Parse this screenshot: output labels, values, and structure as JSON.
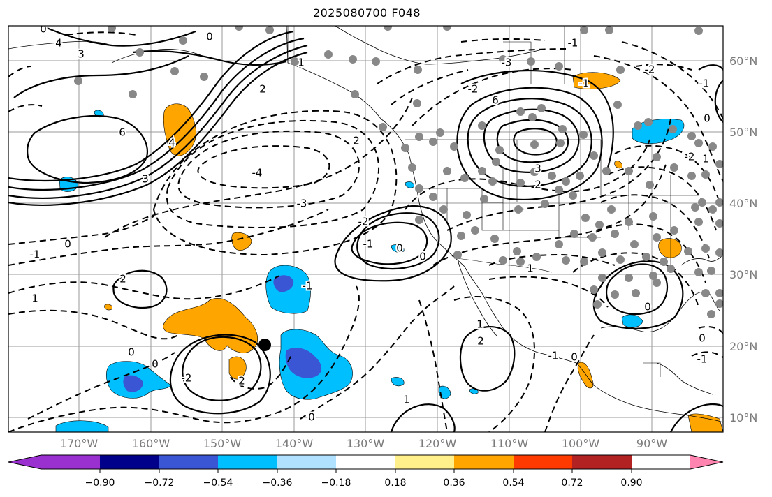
{
  "title": "2025080700 F048",
  "latitude_labels": [
    "60°N",
    "50°N",
    "40°N",
    "30°N",
    "20°N",
    "10°N"
  ],
  "longitude_labels": [
    "170°W",
    "160°W",
    "150°W",
    "140°W",
    "130°W",
    "120°W",
    "110°W",
    "100°W",
    "90°W"
  ],
  "colorbar": {
    "ticks": [
      "−0.90",
      "−0.72",
      "−0.54",
      "−0.36",
      "−0.18",
      "0.18",
      "0.36",
      "0.54",
      "0.72",
      "0.90"
    ],
    "colors": [
      "#9b30d0",
      "#00008b",
      "#3a56d4",
      "#00bfff",
      "#b0e2ff",
      "#ffffff",
      "#fff08c",
      "#ffa500",
      "#ff3a00",
      "#b22222",
      "#ff85b0"
    ]
  },
  "shading_colors": {
    "neg_light": "#00bfff",
    "neg_mid": "#3a56d4",
    "pos": "#ffa500"
  },
  "contour_labels": [
    "0",
    "4",
    "3",
    "0",
    "1",
    "2",
    "6",
    "4",
    "3",
    "2",
    "-4",
    "-3",
    "-2",
    "-1",
    "0",
    "-1",
    "0",
    "0",
    "1",
    "2",
    "0",
    "-1",
    "-2",
    "2",
    "0",
    "1",
    "0",
    "1",
    "2",
    "6",
    "3",
    "2",
    "-1",
    "-2",
    "-3",
    "-1",
    "-2",
    "-1",
    "1",
    "0",
    "0",
    "0",
    "-1",
    "1",
    "0",
    "-1",
    "-2"
  ],
  "station_dot_color": "#888888"
}
